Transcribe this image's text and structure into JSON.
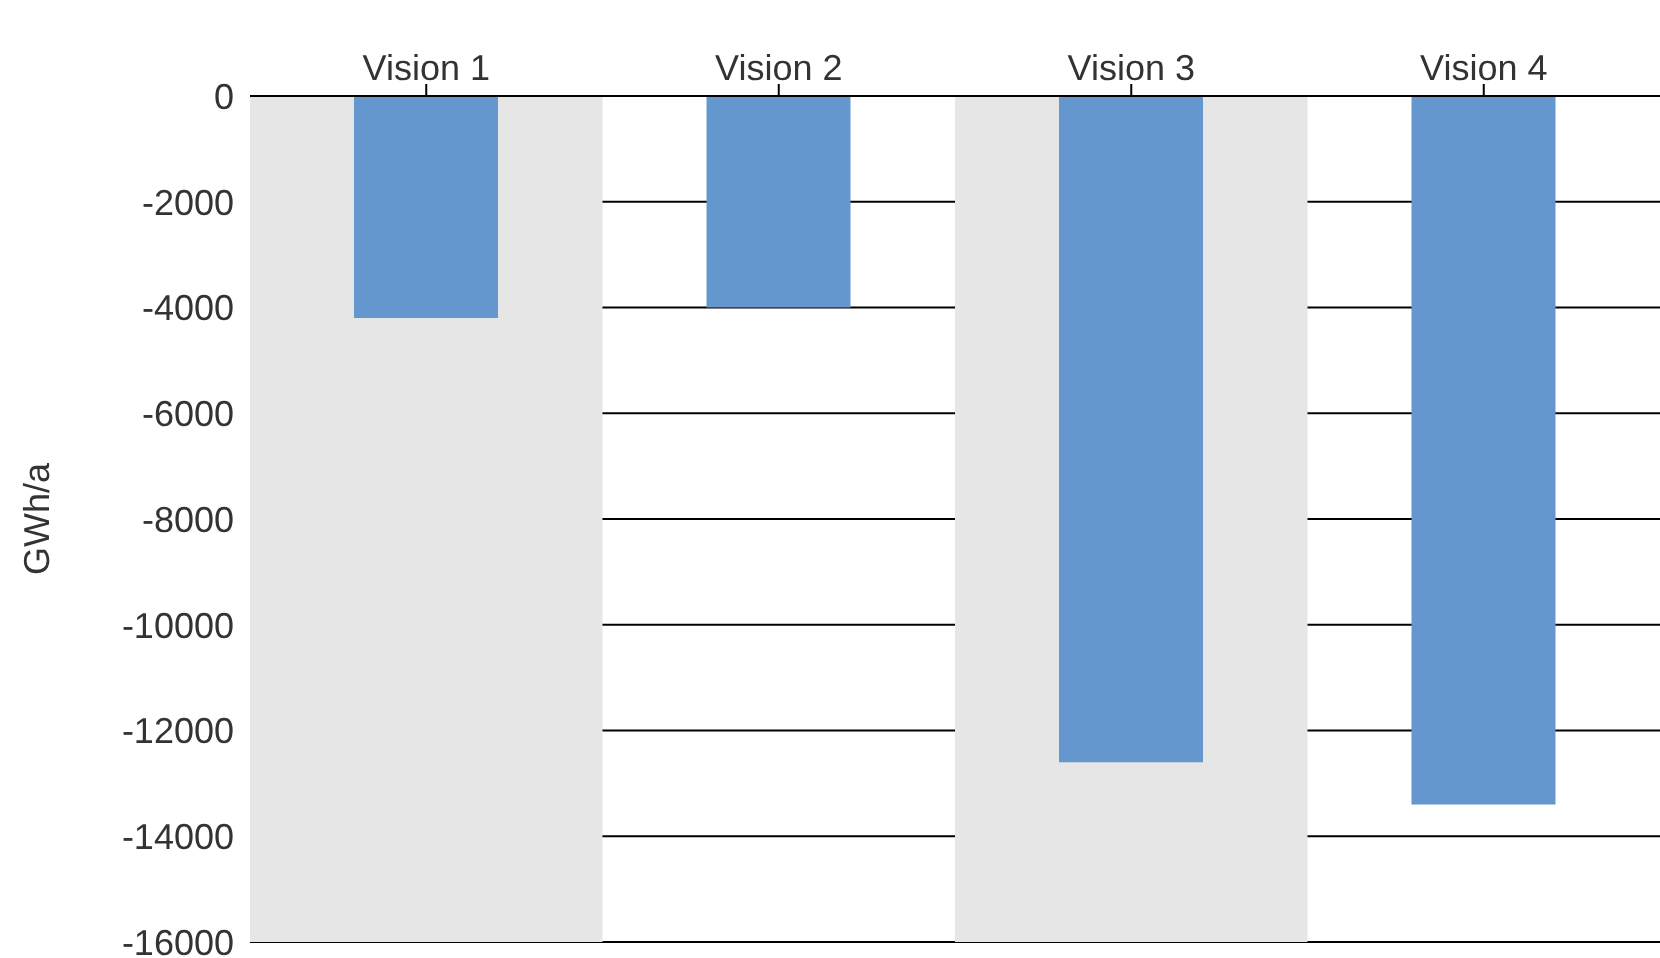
{
  "chart_data": {
    "type": "bar",
    "categories": [
      "Vision 1",
      "Vision 2",
      "Vision 3",
      "Vision 4"
    ],
    "values": [
      -4200,
      -4000,
      -12600,
      -13400
    ],
    "color": "#6497cd",
    "ylabel": "GWh/a",
    "ylim": [
      -16000,
      0
    ],
    "yticks": [
      -16000,
      -14000,
      -12000,
      -10000,
      -8000,
      -6000,
      -4000,
      -2000,
      0
    ],
    "grid": "y",
    "legend": false,
    "bands": [
      {
        "axis": "x",
        "from": "Vision 1",
        "to": "Vision 1",
        "color": "#e6e6e6"
      },
      {
        "axis": "x",
        "from": "Vision 3",
        "to": "Vision 3",
        "color": "#e6e6e6"
      }
    ]
  }
}
